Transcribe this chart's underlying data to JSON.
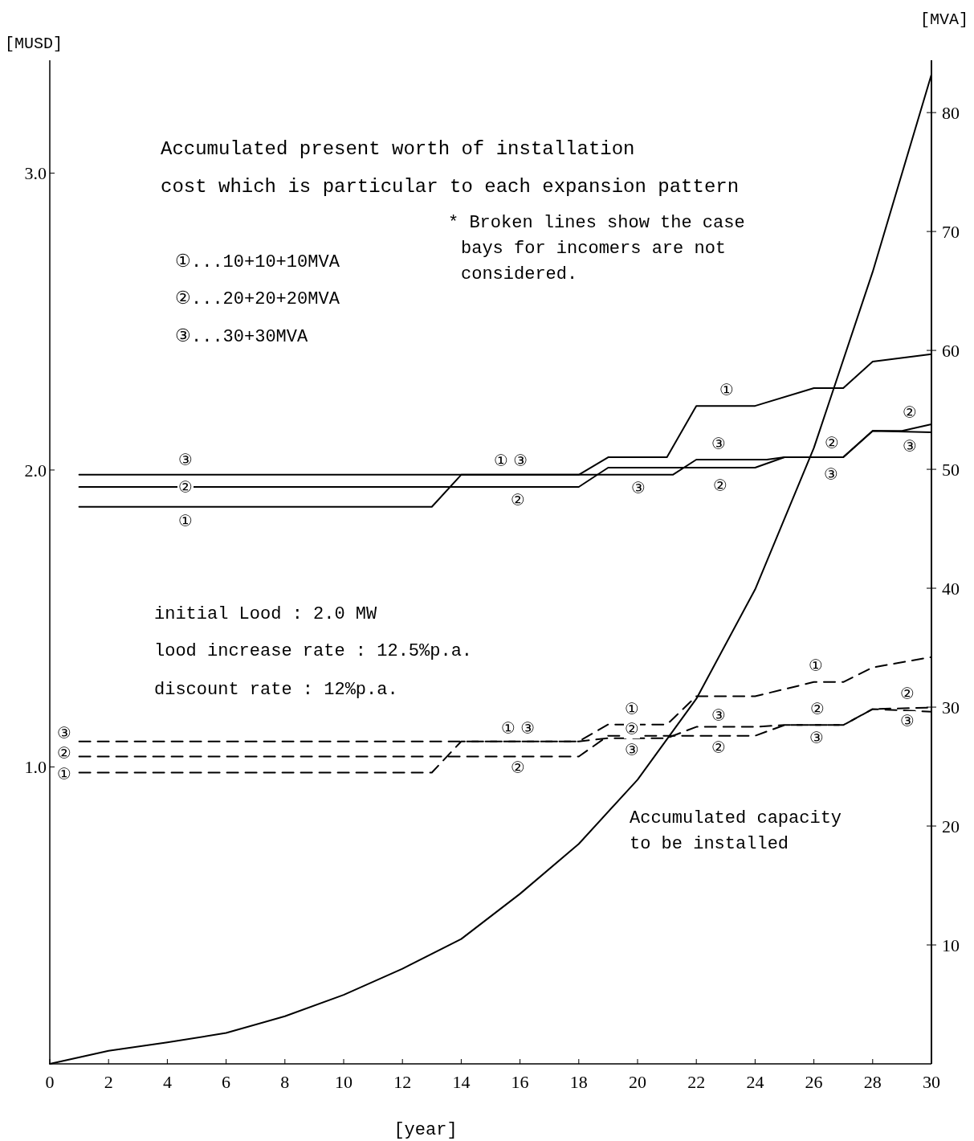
{
  "chart_data": {
    "type": "line",
    "title": "Accumulated present worth of installation",
    "subtitle": "cost which is particular to each expansion pattern",
    "xlabel": "[year]",
    "ylabel": "[MUSD]",
    "y2label": "[MVA]",
    "xlim": [
      0,
      30
    ],
    "xticks": [
      0,
      2,
      4,
      6,
      8,
      10,
      12,
      14,
      16,
      18,
      20,
      22,
      24,
      26,
      28,
      30
    ],
    "ylim": [
      0,
      3.38
    ],
    "yticks": [
      {
        "value": 1,
        "label": "1.0"
      },
      {
        "value": 2,
        "label": "2.0"
      },
      {
        "value": 3,
        "label": "3.0"
      }
    ],
    "y2lim": [
      0,
      84.4
    ],
    "y2ticks": [
      10,
      20,
      30,
      40,
      50,
      60,
      70,
      80
    ],
    "grid": false,
    "series": [
      {
        "color": "#000000",
        "line_style": "solid",
        "x": [
          1,
          13,
          14,
          18,
          19,
          21,
          22,
          24,
          26,
          27,
          28,
          30
        ],
        "values": [
          1.876,
          1.876,
          1.984,
          1.984,
          2.043,
          2.043,
          2.216,
          2.216,
          2.276,
          2.276,
          2.365,
          2.39
        ]
      },
      {
        "color": "#000000",
        "line_style": "solid",
        "x": [
          1,
          18,
          19,
          24,
          25,
          27,
          28,
          29,
          30
        ],
        "values": [
          1.943,
          1.943,
          2.008,
          2.008,
          2.043,
          2.043,
          2.132,
          2.132,
          2.154
        ]
      },
      {
        "color": "#000000",
        "line_style": "solid",
        "x": [
          1,
          18,
          19,
          21.2,
          22,
          24.4,
          25,
          27,
          28,
          30
        ],
        "values": [
          1.984,
          1.984,
          1.984,
          1.984,
          2.035,
          2.035,
          2.043,
          2.043,
          2.132,
          2.127
        ]
      },
      {
        "color": "#000000",
        "line_style": "dashed",
        "x": [
          1,
          13,
          14,
          18,
          19,
          21,
          22,
          24,
          26,
          27,
          28,
          30
        ],
        "values": [
          0.981,
          0.981,
          1.086,
          1.086,
          1.143,
          1.143,
          1.238,
          1.238,
          1.286,
          1.286,
          1.335,
          1.37
        ]
      },
      {
        "color": "#000000",
        "line_style": "dashed",
        "x": [
          1,
          18,
          19,
          24,
          25,
          27,
          28,
          30
        ],
        "values": [
          1.035,
          1.035,
          1.105,
          1.105,
          1.141,
          1.141,
          1.195,
          1.2
        ]
      },
      {
        "color": "#000000",
        "line_style": "dashed",
        "x": [
          1,
          18,
          19,
          21,
          22,
          24,
          25,
          27,
          28,
          30
        ],
        "values": [
          1.086,
          1.086,
          1.097,
          1.097,
          1.135,
          1.135,
          1.141,
          1.141,
          1.195,
          1.186
        ]
      },
      {
        "color": "#000000",
        "line_style": "solid",
        "axis": "y2",
        "x": [
          0,
          2,
          4,
          6,
          8,
          10,
          12,
          14,
          16,
          18,
          20,
          22,
          24,
          26,
          28,
          30
        ],
        "values": [
          0,
          1.1,
          1.8,
          2.6,
          4.0,
          5.8,
          8.0,
          10.5,
          14.3,
          18.5,
          23.9,
          30.7,
          39.9,
          51.8,
          66.6,
          83.2
        ]
      }
    ],
    "annotations": [
      "* Broken lines show the case bays for incomers are not considered.",
      "①...10+10+10MVA",
      "②...20+20+20MVA",
      "③...30+30MVA",
      "initial Lood : 2.0 MW",
      "lood increase rate : 12.5%p.a.",
      "discount rate : 12%p.a.",
      "Accumulated capacity to be installed",
      "③",
      "②",
      "①",
      "① ③",
      "②",
      "③",
      "②",
      "③",
      "①",
      "②",
      "③",
      "②",
      "③",
      "③",
      "②",
      "①",
      "① ③",
      "②",
      "①",
      "②",
      "③",
      "③",
      "②",
      "①",
      "②",
      "③",
      "②",
      "③"
    ]
  }
}
